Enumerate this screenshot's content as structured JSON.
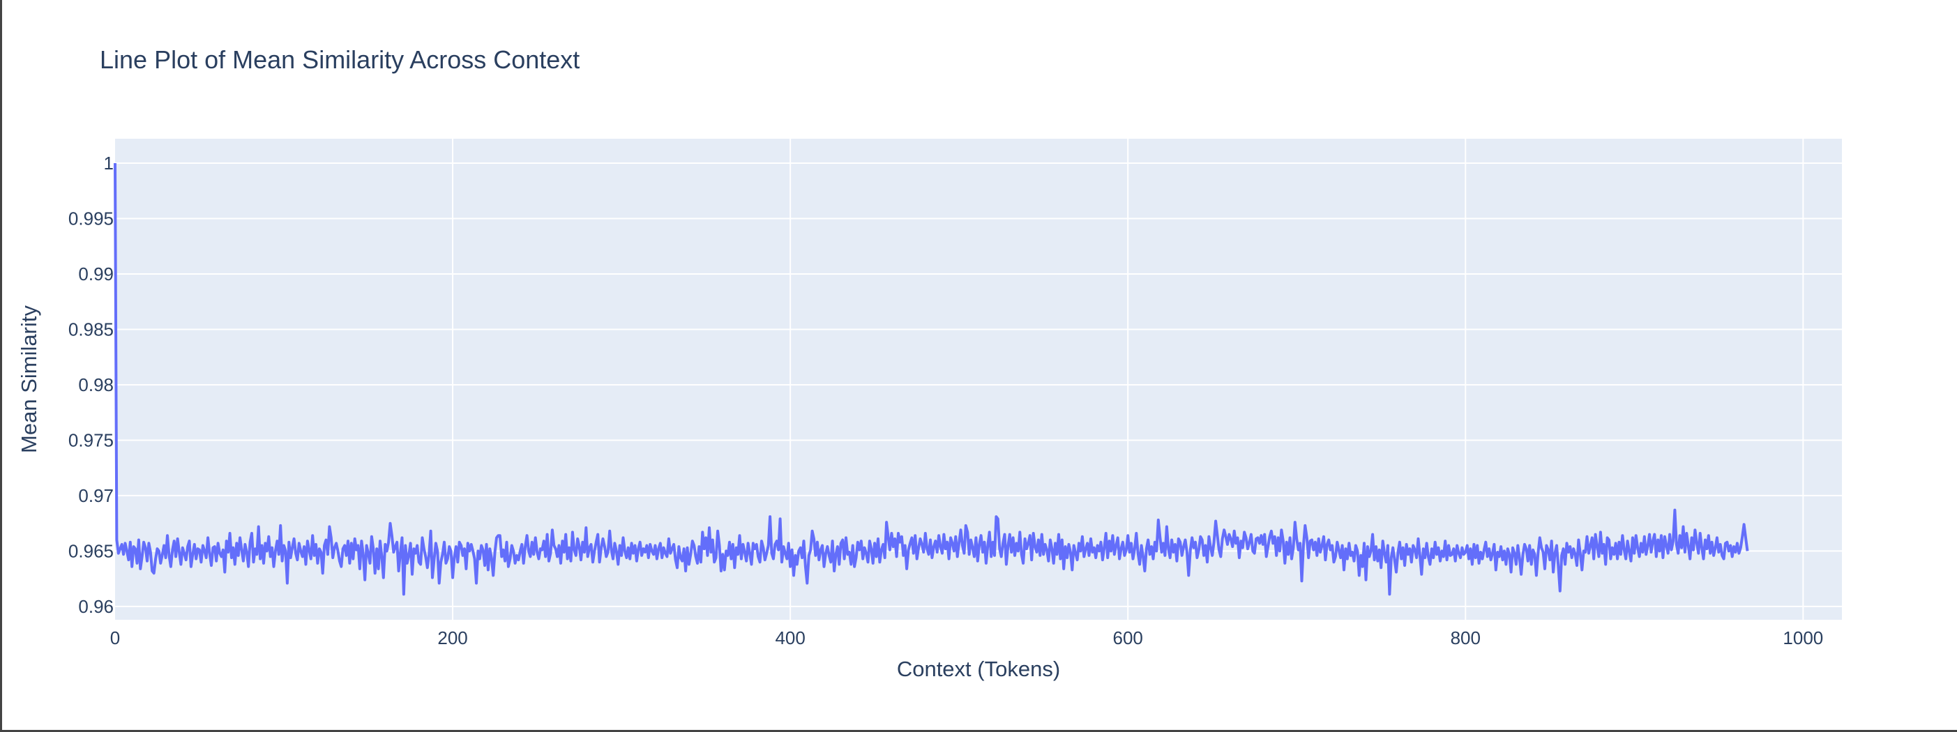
{
  "chart_data": {
    "type": "line",
    "title": "Line Plot of Mean Similarity Across Context",
    "xlabel": "Context (Tokens)",
    "ylabel": "Mean Similarity",
    "xlim": [
      0,
      1023
    ],
    "ylim": [
      0.9588,
      1.0022
    ],
    "x_ticks": [
      "0",
      "200",
      "400",
      "600",
      "800",
      "1000"
    ],
    "y_ticks": [
      "0.96",
      "0.965",
      "0.97",
      "0.975",
      "0.98",
      "0.985",
      "0.99",
      "0.995",
      "1"
    ],
    "grid": true,
    "legend": "none",
    "line_color": "#636efa",
    "plot_bgcolor": "#e5ecf6",
    "series": [
      {
        "x_start": 0,
        "x_step": 1,
        "values": [
          1.0,
          0.966,
          0.9648,
          0.9652,
          0.9656,
          0.9647,
          0.9657,
          0.965,
          0.9642,
          0.9658,
          0.9636,
          0.9654,
          0.9652,
          0.9639,
          0.966,
          0.9634,
          0.9645,
          0.9658,
          0.9653,
          0.9641,
          0.9657,
          0.9649,
          0.9632,
          0.963,
          0.9643,
          0.9652,
          0.965,
          0.9639,
          0.9647,
          0.9655,
          0.9644,
          0.9664,
          0.9646,
          0.9636,
          0.9651,
          0.9659,
          0.9645,
          0.9661,
          0.9649,
          0.9638,
          0.9653,
          0.9648,
          0.9642,
          0.9654,
          0.9659,
          0.9636,
          0.9647,
          0.9656,
          0.9643,
          0.9652,
          0.9651,
          0.964,
          0.9655,
          0.965,
          0.9644,
          0.9662,
          0.9648,
          0.9637,
          0.9653,
          0.9654,
          0.9641,
          0.9657,
          0.9648,
          0.9645,
          0.9651,
          0.9631,
          0.9659,
          0.9649,
          0.9666,
          0.9644,
          0.9653,
          0.9638,
          0.9657,
          0.9646,
          0.9662,
          0.9651,
          0.9641,
          0.9656,
          0.9649,
          0.9636,
          0.9658,
          0.9666,
          0.964,
          0.9652,
          0.9647,
          0.9672,
          0.9643,
          0.9655,
          0.9639,
          0.9657,
          0.965,
          0.9663,
          0.9645,
          0.9653,
          0.9636,
          0.965,
          0.9659,
          0.9647,
          0.9673,
          0.9641,
          0.9655,
          0.965,
          0.9621,
          0.9658,
          0.9644,
          0.9653,
          0.9661,
          0.9648,
          0.9642,
          0.9657,
          0.965,
          0.9645,
          0.9654,
          0.9638,
          0.9659,
          0.9651,
          0.9643,
          0.9664,
          0.9646,
          0.9656,
          0.9639,
          0.9652,
          0.9649,
          0.963,
          0.9655,
          0.966,
          0.9647,
          0.9672,
          0.9662,
          0.9644,
          0.9653,
          0.9657,
          0.965,
          0.9641,
          0.9636,
          0.9652,
          0.9655,
          0.9646,
          0.9659,
          0.9639,
          0.9657,
          0.9643,
          0.9661,
          0.9651,
          0.9655,
          0.9634,
          0.9659,
          0.9647,
          0.9624,
          0.9655,
          0.9648,
          0.9639,
          0.9663,
          0.9652,
          0.963,
          0.9652,
          0.9634,
          0.9659,
          0.9645,
          0.9626,
          0.9656,
          0.965,
          0.9658,
          0.9675,
          0.9664,
          0.9649,
          0.9654,
          0.9658,
          0.9632,
          0.9648,
          0.9662,
          0.9611,
          0.9655,
          0.9639,
          0.9646,
          0.9657,
          0.9629,
          0.9652,
          0.9648,
          0.9655,
          0.964,
          0.9638,
          0.9662,
          0.9652,
          0.9645,
          0.9635,
          0.9647,
          0.9668,
          0.9626,
          0.9642,
          0.9657,
          0.965,
          0.9621,
          0.964,
          0.9647,
          0.9658,
          0.9639,
          0.9643,
          0.9654,
          0.965,
          0.9626,
          0.9645,
          0.9654,
          0.964,
          0.9658,
          0.9655,
          0.9646,
          0.9652,
          0.9634,
          0.9657,
          0.965,
          0.9656,
          0.965,
          0.9643,
          0.9621,
          0.965,
          0.9643,
          0.9655,
          0.9651,
          0.9637,
          0.9656,
          0.9633,
          0.9652,
          0.9644,
          0.9628,
          0.9649,
          0.9662,
          0.9664,
          0.9664,
          0.9645,
          0.9651,
          0.9641,
          0.9658,
          0.9636,
          0.9643,
          0.9655,
          0.965,
          0.9639,
          0.9646,
          0.9642,
          0.965,
          0.9656,
          0.9639,
          0.9654,
          0.9664,
          0.965,
          0.9645,
          0.9658,
          0.9647,
          0.9662,
          0.9649,
          0.9643,
          0.9652,
          0.9651,
          0.9659,
          0.9645,
          0.9665,
          0.9641,
          0.9648,
          0.9669,
          0.9655,
          0.9652,
          0.9645,
          0.9655,
          0.9639,
          0.9659,
          0.9649,
          0.9665,
          0.9643,
          0.9653,
          0.9641,
          0.9667,
          0.9651,
          0.9646,
          0.9661,
          0.9654,
          0.9642,
          0.9658,
          0.9649,
          0.9671,
          0.9645,
          0.9653,
          0.9656,
          0.964,
          0.965,
          0.9658,
          0.9665,
          0.964,
          0.9653,
          0.9661,
          0.9654,
          0.9645,
          0.9649,
          0.9668,
          0.9651,
          0.9643,
          0.9657,
          0.965,
          0.9638,
          0.9655,
          0.9646,
          0.9662,
          0.965,
          0.9644,
          0.9653,
          0.9643,
          0.9657,
          0.9648,
          0.9655,
          0.9641,
          0.9652,
          0.9658,
          0.9646,
          0.9652,
          0.9649,
          0.9655,
          0.9644,
          0.9656,
          0.965,
          0.9647,
          0.9655,
          0.9643,
          0.9652,
          0.9657,
          0.9644,
          0.9653,
          0.9648,
          0.9645,
          0.9661,
          0.9648,
          0.9652,
          0.9656,
          0.9642,
          0.9635,
          0.9654,
          0.9644,
          0.9641,
          0.9652,
          0.9632,
          0.9653,
          0.9638,
          0.9647,
          0.9659,
          0.9655,
          0.9645,
          0.9639,
          0.9654,
          0.964,
          0.9667,
          0.9652,
          0.9662,
          0.9646,
          0.9671,
          0.9649,
          0.966,
          0.964,
          0.9644,
          0.9668,
          0.9655,
          0.9632,
          0.9647,
          0.9633,
          0.965,
          0.9646,
          0.9658,
          0.9643,
          0.9656,
          0.9635,
          0.9653,
          0.9647,
          0.9664,
          0.9643,
          0.9656,
          0.9649,
          0.9641,
          0.9657,
          0.9648,
          0.9638,
          0.9657,
          0.9652,
          0.9656,
          0.9645,
          0.964,
          0.9659,
          0.9653,
          0.9642,
          0.9648,
          0.9655,
          0.9681,
          0.9648,
          0.9643,
          0.9656,
          0.9659,
          0.9651,
          0.9679,
          0.964,
          0.9654,
          0.9648,
          0.9643,
          0.9657,
          0.9636,
          0.9651,
          0.9628,
          0.9646,
          0.9638,
          0.965,
          0.9653,
          0.9644,
          0.9659,
          0.9636,
          0.9621,
          0.9646,
          0.9651,
          0.9668,
          0.9661,
          0.9646,
          0.9658,
          0.9642,
          0.9651,
          0.9655,
          0.9636,
          0.9648,
          0.9654,
          0.9646,
          0.964,
          0.9659,
          0.9632,
          0.9647,
          0.9654,
          0.9638,
          0.9657,
          0.966,
          0.9643,
          0.9662,
          0.9647,
          0.9649,
          0.9638,
          0.9655,
          0.9636,
          0.9644,
          0.9658,
          0.9651,
          0.9659,
          0.9643,
          0.9653,
          0.9648,
          0.964,
          0.9659,
          0.9652,
          0.9639,
          0.9657,
          0.9645,
          0.9661,
          0.964,
          0.9651,
          0.9656,
          0.9644,
          0.9676,
          0.9663,
          0.9651,
          0.9666,
          0.9654,
          0.9661,
          0.9645,
          0.9666,
          0.9658,
          0.9663,
          0.9646,
          0.9655,
          0.9634,
          0.9651,
          0.9657,
          0.9662,
          0.9648,
          0.9664,
          0.9643,
          0.9653,
          0.9661,
          0.9656,
          0.9649,
          0.9666,
          0.9652,
          0.9647,
          0.966,
          0.9644,
          0.9654,
          0.9659,
          0.9649,
          0.9664,
          0.9654,
          0.9648,
          0.9665,
          0.9652,
          0.9658,
          0.9643,
          0.9662,
          0.9657,
          0.965,
          0.9663,
          0.9645,
          0.9658,
          0.9669,
          0.9655,
          0.9648,
          0.9673,
          0.9667,
          0.9647,
          0.966,
          0.9653,
          0.9645,
          0.9662,
          0.9641,
          0.9656,
          0.9664,
          0.9649,
          0.9658,
          0.9639,
          0.9655,
          0.9667,
          0.9645,
          0.9658,
          0.9646,
          0.9681,
          0.9679,
          0.9652,
          0.9645,
          0.9657,
          0.9665,
          0.9638,
          0.9655,
          0.9665,
          0.9649,
          0.9662,
          0.9646,
          0.9657,
          0.965,
          0.9667,
          0.9647,
          0.9639,
          0.9661,
          0.9652,
          0.9657,
          0.9664,
          0.9642,
          0.9666,
          0.9654,
          0.9649,
          0.966,
          0.9646,
          0.9665,
          0.9647,
          0.9656,
          0.9651,
          0.9641,
          0.966,
          0.9652,
          0.9639,
          0.9657,
          0.9647,
          0.9665,
          0.9643,
          0.966,
          0.9634,
          0.9654,
          0.9644,
          0.9656,
          0.9649,
          0.9633,
          0.9655,
          0.9648,
          0.9642,
          0.9657,
          0.965,
          0.9663,
          0.9645,
          0.9652,
          0.9657,
          0.9646,
          0.9661,
          0.9649,
          0.9653,
          0.9644,
          0.9655,
          0.965,
          0.9658,
          0.9642,
          0.9653,
          0.9666,
          0.9644,
          0.9659,
          0.965,
          0.9664,
          0.9647,
          0.9655,
          0.9662,
          0.9643,
          0.9652,
          0.9658,
          0.9646,
          0.9651,
          0.9664,
          0.9649,
          0.9657,
          0.9643,
          0.9652,
          0.9666,
          0.9648,
          0.9638,
          0.9655,
          0.9645,
          0.9632,
          0.9652,
          0.966,
          0.9647,
          0.9654,
          0.9643,
          0.9658,
          0.965,
          0.9678,
          0.9663,
          0.9649,
          0.9657,
          0.9646,
          0.9672,
          0.9652,
          0.9644,
          0.966,
          0.9649,
          0.9656,
          0.9641,
          0.9661,
          0.9658,
          0.9646,
          0.9654,
          0.966,
          0.9649,
          0.9628,
          0.9651,
          0.9662,
          0.9653,
          0.9658,
          0.9644,
          0.9651,
          0.9663,
          0.966,
          0.9646,
          0.9655,
          0.964,
          0.9663,
          0.9653,
          0.9646,
          0.9658,
          0.9677,
          0.9664,
          0.9651,
          0.9645,
          0.9661,
          0.9669,
          0.9663,
          0.9656,
          0.9665,
          0.9661,
          0.9654,
          0.9668,
          0.9657,
          0.9662,
          0.9644,
          0.9659,
          0.9653,
          0.9667,
          0.9662,
          0.9652,
          0.9658,
          0.9665,
          0.965,
          0.9648,
          0.9661,
          0.9662,
          0.9657,
          0.9664,
          0.9656,
          0.9665,
          0.9645,
          0.9654,
          0.9663,
          0.9668,
          0.9657,
          0.9663,
          0.9646,
          0.9662,
          0.965,
          0.9669,
          0.9659,
          0.9639,
          0.9658,
          0.9647,
          0.9662,
          0.9643,
          0.9653,
          0.9676,
          0.9661,
          0.9651,
          0.9657,
          0.9623,
          0.9655,
          0.9673,
          0.9662,
          0.9644,
          0.9659,
          0.966,
          0.9651,
          0.9658,
          0.9646,
          0.9661,
          0.9649,
          0.9655,
          0.9663,
          0.9642,
          0.9656,
          0.966,
          0.9651,
          0.9655,
          0.964,
          0.9645,
          0.9658,
          0.9651,
          0.9644,
          0.9655,
          0.9633,
          0.9652,
          0.9643,
          0.9657,
          0.9646,
          0.9649,
          0.9641,
          0.9655,
          0.965,
          0.9628,
          0.9646,
          0.9636,
          0.9657,
          0.9624,
          0.9654,
          0.9645,
          0.965,
          0.9665,
          0.9642,
          0.9654,
          0.9641,
          0.9651,
          0.9635,
          0.9659,
          0.9648,
          0.964,
          0.9655,
          0.9611,
          0.9644,
          0.9653,
          0.9642,
          0.9631,
          0.9649,
          0.9658,
          0.9643,
          0.9653,
          0.9637,
          0.9656,
          0.9647,
          0.9652,
          0.964,
          0.9655,
          0.9651,
          0.9644,
          0.9661,
          0.9646,
          0.9629,
          0.9652,
          0.9644,
          0.9657,
          0.9645,
          0.9638,
          0.9652,
          0.9644,
          0.9658,
          0.9647,
          0.9653,
          0.9641,
          0.965,
          0.9645,
          0.9659,
          0.9642,
          0.9655,
          0.9646,
          0.9647,
          0.9652,
          0.9641,
          0.9655,
          0.9648,
          0.9644,
          0.9653,
          0.9647,
          0.9649,
          0.9655,
          0.9643,
          0.9652,
          0.9638,
          0.9656,
          0.9644,
          0.9655,
          0.9639,
          0.9649,
          0.9643,
          0.9651,
          0.9658,
          0.9645,
          0.9652,
          0.9642,
          0.9648,
          0.9656,
          0.9633,
          0.9649,
          0.9645,
          0.9654,
          0.9642,
          0.965,
          0.9638,
          0.9652,
          0.9647,
          0.9631,
          0.9653,
          0.9648,
          0.9638,
          0.9655,
          0.9644,
          0.9629,
          0.9647,
          0.9656,
          0.9652,
          0.9641,
          0.9655,
          0.9638,
          0.9651,
          0.9647,
          0.9628,
          0.9648,
          0.9662,
          0.9653,
          0.9649,
          0.9634,
          0.9655,
          0.9651,
          0.9642,
          0.9659,
          0.9631,
          0.9648,
          0.9655,
          0.9636,
          0.9614,
          0.9646,
          0.9652,
          0.9638,
          0.9657,
          0.9649,
          0.9654,
          0.9644,
          0.9652,
          0.9647,
          0.9637,
          0.966,
          0.9648,
          0.9633,
          0.965,
          0.9649,
          0.9663,
          0.9648,
          0.9655,
          0.9662,
          0.9643,
          0.9665,
          0.9654,
          0.9645,
          0.9667,
          0.9648,
          0.9656,
          0.9638,
          0.9662,
          0.966,
          0.9643,
          0.9653,
          0.9647,
          0.9657,
          0.9643,
          0.9658,
          0.9647,
          0.9664,
          0.9651,
          0.9643,
          0.9659,
          0.965,
          0.9641,
          0.9662,
          0.9648,
          0.9664,
          0.9653,
          0.9645,
          0.9657,
          0.9649,
          0.9663,
          0.9647,
          0.9655,
          0.9665,
          0.9649,
          0.9659,
          0.9665,
          0.9645,
          0.966,
          0.965,
          0.9664,
          0.9644,
          0.9663,
          0.9655,
          0.9648,
          0.9665,
          0.9651,
          0.9659,
          0.9687,
          0.9656,
          0.9648,
          0.9664,
          0.9653,
          0.9672,
          0.9649,
          0.9666,
          0.9655,
          0.9643,
          0.9662,
          0.9651,
          0.9669,
          0.9657,
          0.9648,
          0.9666,
          0.9653,
          0.9643,
          0.966,
          0.9652,
          0.9664,
          0.9648,
          0.9658,
          0.9646,
          0.9653,
          0.9662,
          0.9649,
          0.9656,
          0.9646,
          0.9643,
          0.9657,
          0.9658,
          0.965,
          0.9655,
          0.9645,
          0.9654,
          0.9649,
          0.9657,
          0.9648,
          0.9653,
          0.9663,
          0.9674,
          0.9662,
          0.965
        ]
      }
    ]
  }
}
